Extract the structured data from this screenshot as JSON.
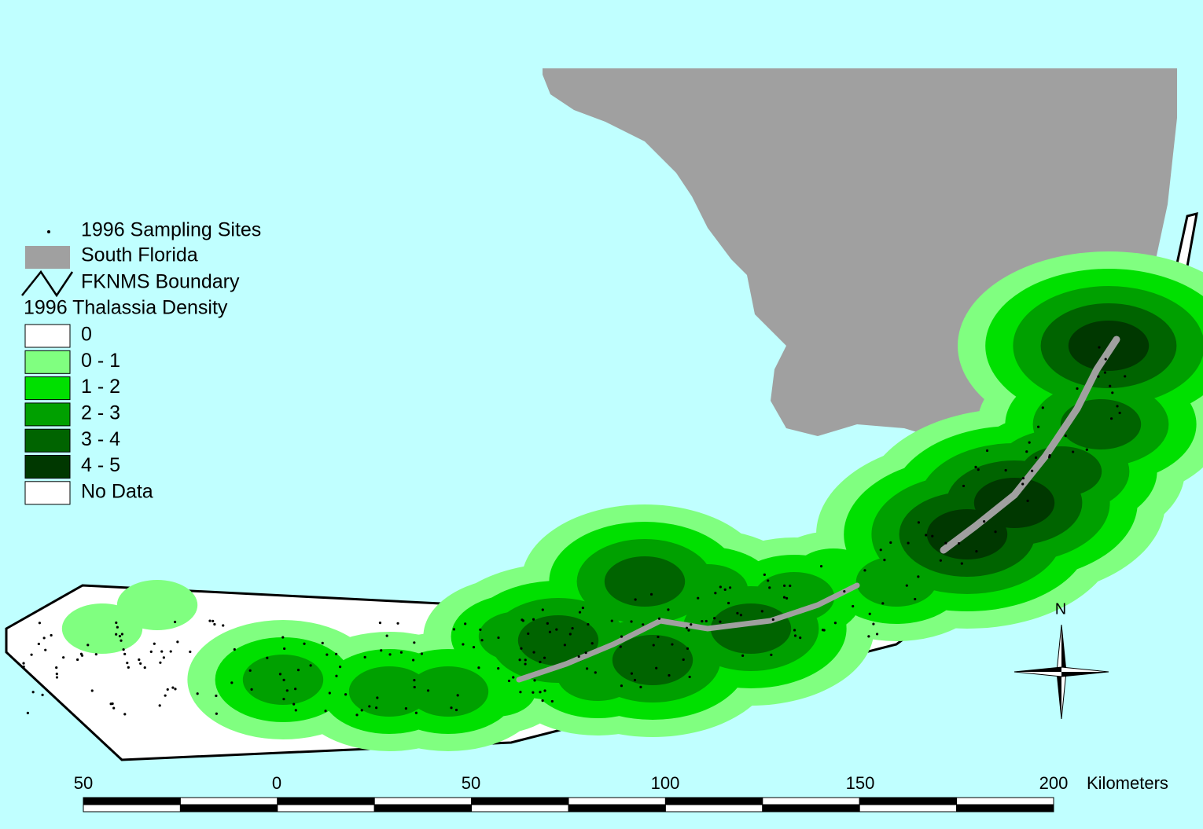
{
  "legend": {
    "sites": "1996 Sampling Sites",
    "land": {
      "label": "South Florida",
      "color": "#a0a0a0"
    },
    "boundary": "FKNMS Boundary",
    "density_title": "1996 Thalassia Density",
    "classes": [
      {
        "label": "0",
        "color": "#ffffff"
      },
      {
        "label": "0 - 1",
        "color": "#80ff80"
      },
      {
        "label": "1 - 2",
        "color": "#00e000"
      },
      {
        "label": "2 - 3",
        "color": "#00a000"
      },
      {
        "label": "3 - 4",
        "color": "#006400"
      },
      {
        "label": "4 - 5",
        "color": "#003800"
      },
      {
        "label": "No Data",
        "color": "#ffffff"
      }
    ]
  },
  "scale_bar": {
    "labels": [
      "50",
      "0",
      "50",
      "100",
      "150",
      "200"
    ],
    "unit": "Kilometers"
  },
  "north_arrow": "N"
}
